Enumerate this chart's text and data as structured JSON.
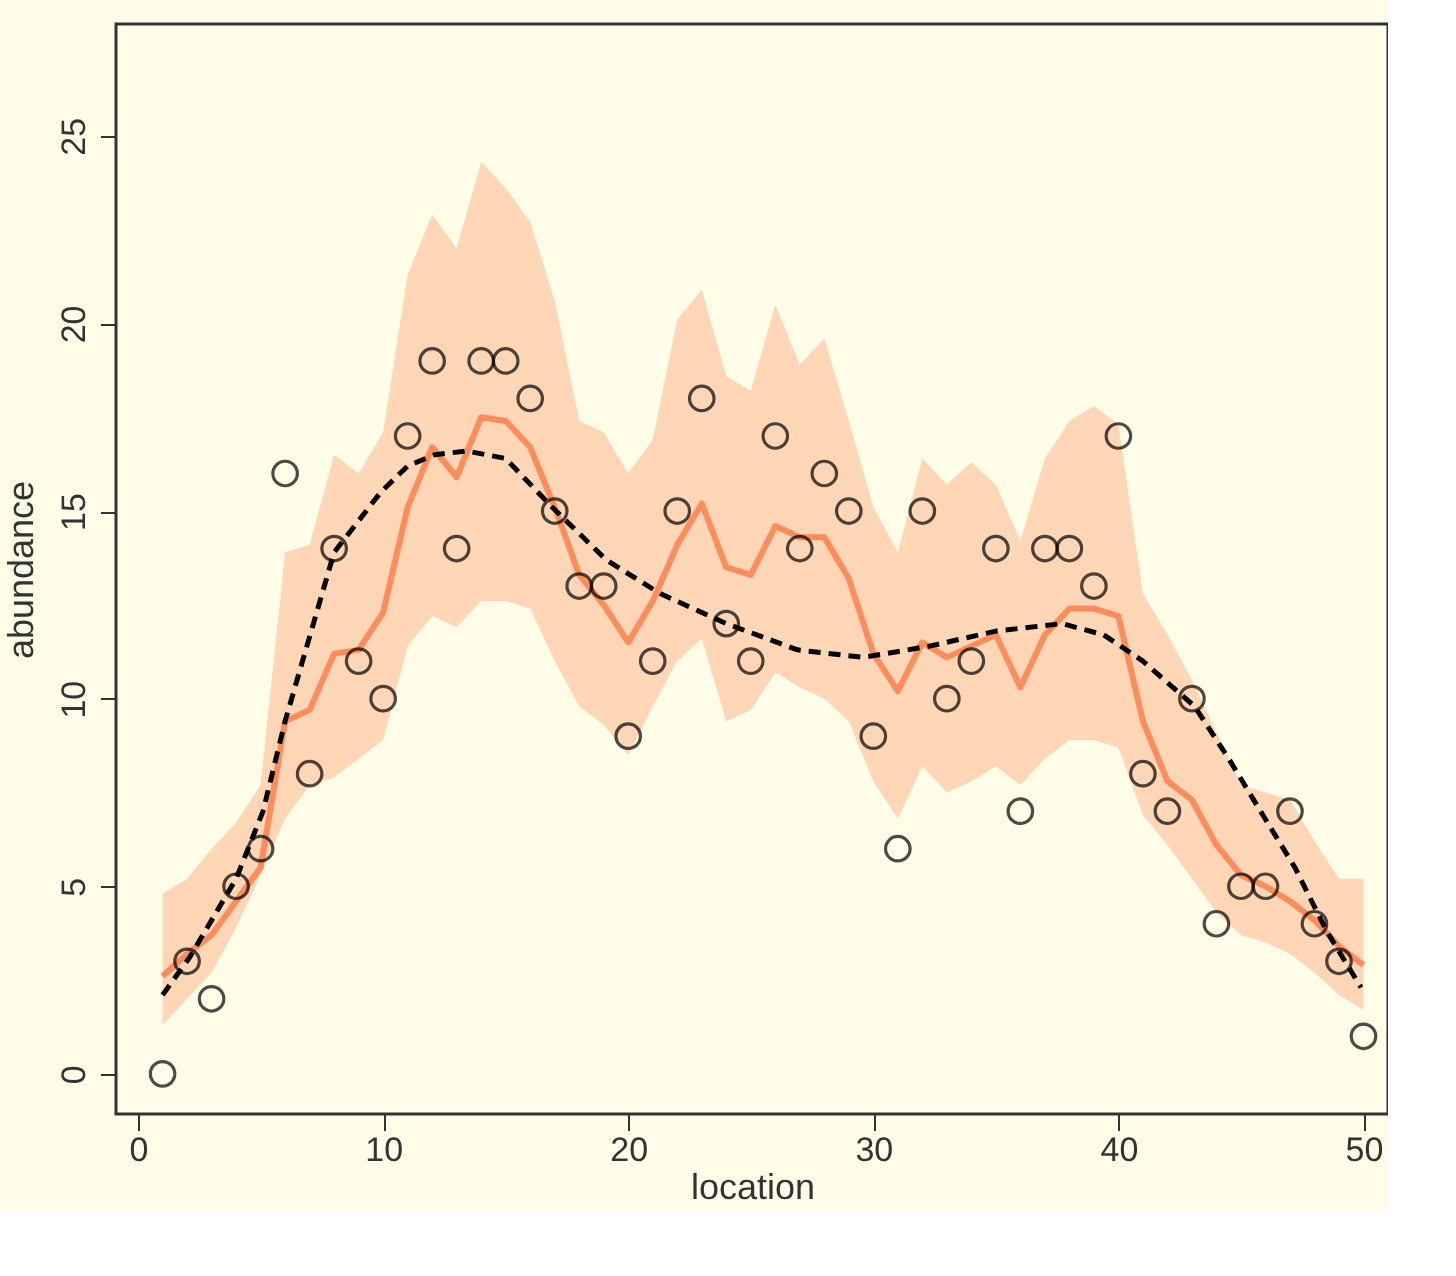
{
  "chart_data": {
    "type": "scatter",
    "xlabel": "location",
    "ylabel": "abundance",
    "x": [
      1,
      2,
      3,
      4,
      5,
      6,
      7,
      8,
      9,
      10,
      11,
      12,
      13,
      14,
      15,
      16,
      17,
      18,
      19,
      20,
      21,
      22,
      23,
      24,
      25,
      26,
      27,
      28,
      29,
      30,
      31,
      32,
      33,
      34,
      35,
      36,
      37,
      38,
      39,
      40,
      41,
      42,
      43,
      44,
      45,
      46,
      47,
      48,
      49,
      50
    ],
    "xlim": [
      -0.9,
      51
    ],
    "xticks": [
      0,
      10,
      20,
      30,
      40,
      50
    ],
    "ylim": [
      -1.07,
      27.98
    ],
    "yticks": [
      0,
      5,
      10,
      15,
      20,
      25
    ],
    "grid": false,
    "series": [
      {
        "type": "line",
        "color": "#ff8c5a",
        "line_style": "solid",
        "marker": "none",
        "values": [
          2.6,
          3.2,
          3.7,
          4.6,
          5.5,
          9.4,
          9.7,
          11.2,
          11.3,
          12.3,
          15.1,
          16.7,
          15.9,
          17.5,
          17.4,
          16.7,
          15.1,
          13.3,
          12.5,
          11.5,
          12.6,
          14.1,
          15.2,
          13.5,
          13.3,
          14.6,
          14.3,
          14.3,
          13.2,
          11.2,
          10.2,
          11.5,
          11.1,
          11.4,
          11.7,
          10.3,
          11.7,
          12.4,
          12.4,
          12.2,
          9.4,
          7.8,
          7.3,
          6.1,
          5.3,
          5.0,
          4.6,
          4.1,
          3.4,
          2.9
        ],
        "lower": [
          1.3,
          2.0,
          2.7,
          3.9,
          5.3,
          6.8,
          7.7,
          7.9,
          8.4,
          8.9,
          11.4,
          12.2,
          11.9,
          12.6,
          12.6,
          12.4,
          11.0,
          9.8,
          9.3,
          8.5,
          9.8,
          11.0,
          11.6,
          9.4,
          9.7,
          10.7,
          10.3,
          10.0,
          9.4,
          7.8,
          6.8,
          8.2,
          7.5,
          7.8,
          8.2,
          7.7,
          8.4,
          8.9,
          8.9,
          8.7,
          6.9,
          6.1,
          5.2,
          4.3,
          3.7,
          3.5,
          3.2,
          2.7,
          2.1,
          1.7
        ],
        "upper": [
          4.8,
          5.2,
          6.0,
          6.7,
          7.7,
          13.9,
          14.1,
          16.5,
          16.0,
          17.1,
          21.3,
          22.9,
          22.0,
          24.3,
          23.6,
          22.7,
          20.6,
          17.4,
          17.1,
          16.0,
          16.9,
          20.1,
          20.9,
          18.6,
          18.2,
          20.5,
          18.9,
          19.6,
          17.4,
          15.1,
          13.9,
          16.4,
          15.7,
          16.3,
          15.7,
          14.2,
          16.4,
          17.4,
          17.8,
          17.3,
          12.8,
          11.7,
          10.5,
          9.1,
          7.7,
          7.5,
          7.3,
          6.2,
          5.2,
          5.2
        ]
      },
      {
        "type": "line",
        "color": "#000000",
        "line_style": "dashed",
        "marker": "none",
        "x": [
          1,
          2.1,
          4.0,
          5.1,
          6.0,
          8.0,
          9.9,
          11.0,
          12.1,
          13.4,
          15.0,
          16.9,
          19.1,
          21.3,
          24.0,
          26.9,
          29.6,
          32.3,
          35.0,
          37.7,
          39.4,
          41.0,
          43.1,
          44.5,
          45.8,
          47.2,
          48.5,
          49.9
        ],
        "values": [
          2.1,
          3.1,
          5.2,
          7.0,
          9.4,
          13.9,
          15.5,
          16.2,
          16.5,
          16.6,
          16.4,
          15.1,
          13.7,
          12.8,
          12.0,
          11.3,
          11.1,
          11.4,
          11.8,
          12.0,
          11.7,
          11.0,
          9.8,
          8.4,
          7.0,
          5.5,
          3.8,
          2.3
        ]
      },
      {
        "color": "#000000",
        "marker": "circle",
        "values": [
          0,
          3,
          2,
          5,
          6,
          16,
          8,
          14,
          11,
          10,
          17,
          19,
          14,
          19,
          19,
          18,
          15,
          13,
          13,
          9,
          11,
          15,
          18,
          12,
          11,
          17,
          14,
          16,
          15,
          9,
          6,
          15,
          10,
          11,
          14,
          7,
          14,
          14,
          13,
          17,
          8,
          7,
          10,
          4,
          5,
          5,
          7,
          4,
          3,
          1
        ]
      }
    ]
  }
}
